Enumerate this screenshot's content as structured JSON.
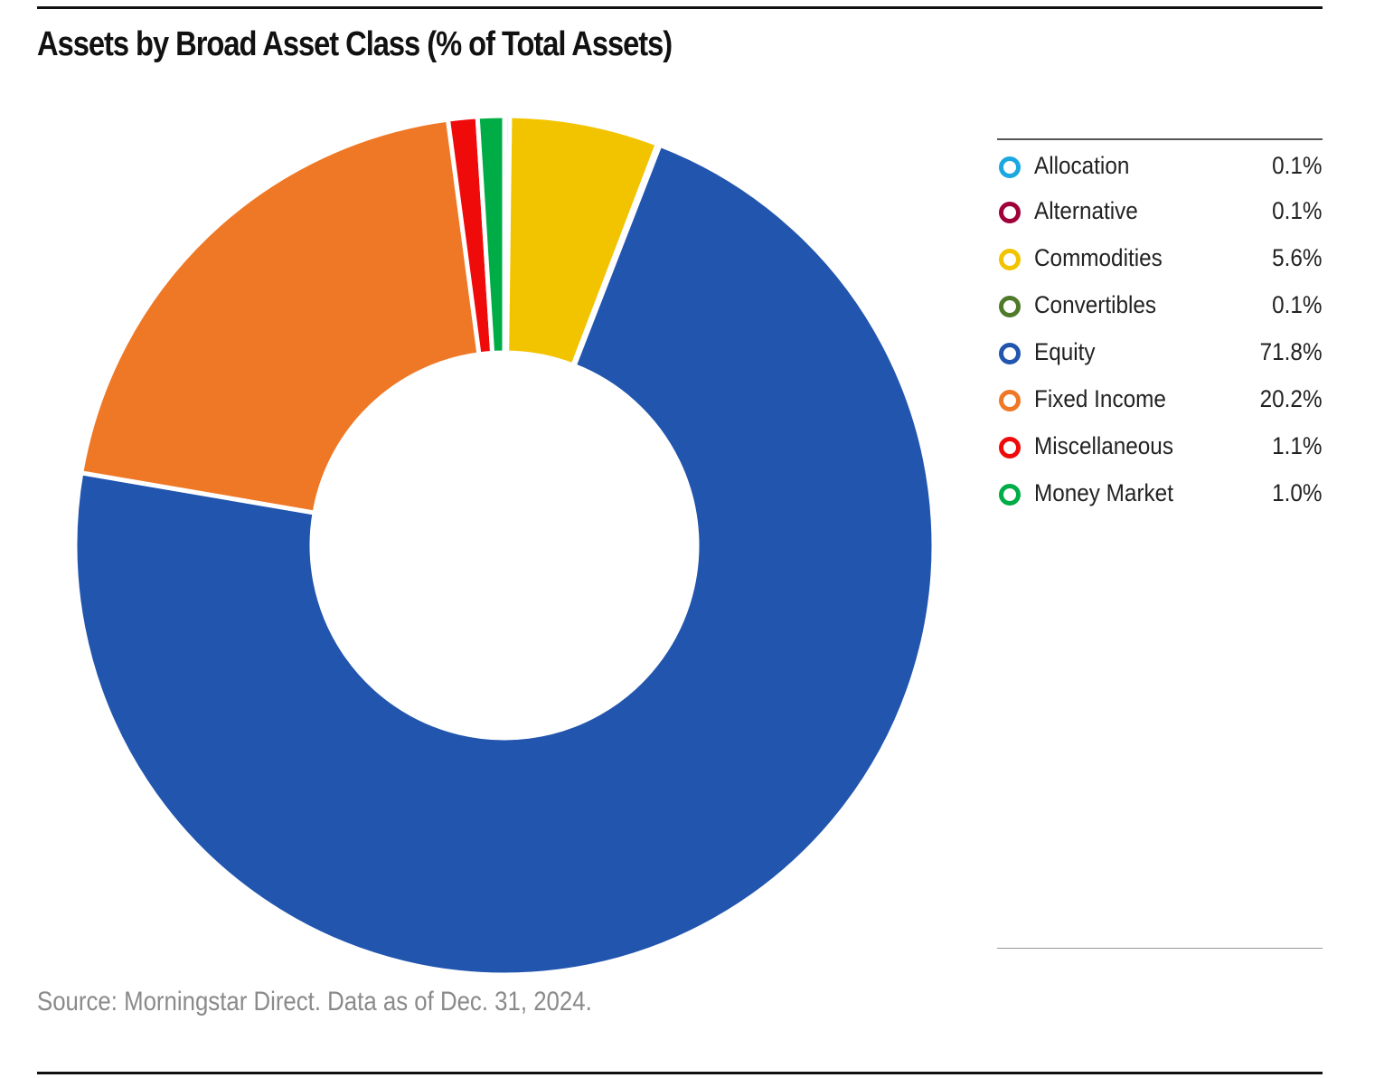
{
  "title": "Assets by Broad Asset Class (% of Total Assets)",
  "source": "Source: Morningstar Direct. Data as of Dec. 31, 2024.",
  "chart_data": {
    "type": "pie",
    "donut": true,
    "title": "Assets by Broad Asset Class (% of Total Assets)",
    "legend_position": "right",
    "slices": [
      {
        "label": "Allocation",
        "value": 0.1,
        "value_text": "0.1%",
        "color": "#1BA8E0"
      },
      {
        "label": "Alternative",
        "value": 0.1,
        "value_text": "0.1%",
        "color": "#A0003A"
      },
      {
        "label": "Commodities",
        "value": 5.6,
        "value_text": "5.6%",
        "color": "#F2C400"
      },
      {
        "label": "Convertibles",
        "value": 0.1,
        "value_text": "0.1%",
        "color": "#4E7A2A"
      },
      {
        "label": "Equity",
        "value": 71.8,
        "value_text": "71.8%",
        "color": "#2155AE"
      },
      {
        "label": "Fixed Income",
        "value": 20.2,
        "value_text": "20.2%",
        "color": "#EF7826"
      },
      {
        "label": "Miscellaneous",
        "value": 1.1,
        "value_text": "1.1%",
        "color": "#F00B0B"
      },
      {
        "label": "Money Market",
        "value": 1.0,
        "value_text": "1.0%",
        "color": "#00AC45"
      }
    ]
  }
}
